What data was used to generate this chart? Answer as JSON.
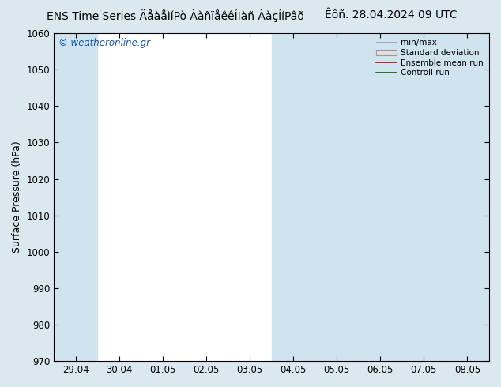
{
  "title_left": "ENS Time Series ÄåàåìíPò ÀàñïåêêÍIàñ ÀàçÍíPâõ",
  "title_right": "Êôñ. 28.04.2024 09 UTC",
  "ylabel": "Surface Pressure (hPa)",
  "ylim": [
    970,
    1060
  ],
  "yticks": [
    970,
    980,
    990,
    1000,
    1010,
    1020,
    1030,
    1040,
    1050,
    1060
  ],
  "xtick_labels": [
    "29.04",
    "30.04",
    "01.05",
    "02.05",
    "03.05",
    "04.05",
    "05.05",
    "06.05",
    "07.05",
    "08.05"
  ],
  "bg_color": "#dce8f0",
  "plot_bg_color": "#ffffff",
  "shaded_color": "#d0e4f0",
  "shaded_ranges": [
    [
      0,
      1
    ],
    [
      5,
      7
    ],
    [
      7,
      9
    ]
  ],
  "watermark": "© weatheronline.gr",
  "legend_items": [
    "min/max",
    "Standard deviation",
    "Ensemble mean run",
    "Controll run"
  ],
  "legend_line_color": "#999999",
  "legend_std_face": "#e0e0e0",
  "legend_std_edge": "#999999",
  "legend_mean_color": "#cc0000",
  "legend_ctrl_color": "#006600",
  "title_fontsize": 10,
  "axis_fontsize": 9,
  "tick_fontsize": 8.5
}
